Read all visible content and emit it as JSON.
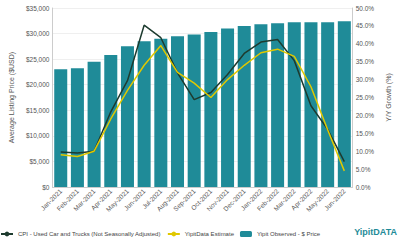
{
  "chart_data": {
    "type": "bar",
    "categories": [
      "Jan-2021",
      "Feb-2021",
      "Mar-2021",
      "Apr-2021",
      "May-2021",
      "Jun-2021",
      "Jul-2021",
      "Aug-2021",
      "Sep-2021",
      "Oct-2021",
      "Nov-2021",
      "Dec-2021",
      "Jan-2022",
      "Feb-2022",
      "Mar-2022",
      "Apr-2022",
      "May-2022",
      "Jun-2022"
    ],
    "series": [
      {
        "name": "CPI - Used Car and Trucks (Not Seasonally Adjusted)",
        "type": "line",
        "axis": "y2",
        "color": "#1d3b2f",
        "marker": "none",
        "values": [
          9.8,
          9.5,
          10.0,
          21.0,
          29.7,
          45.2,
          41.7,
          31.9,
          24.4,
          26.4,
          31.4,
          37.3,
          40.5,
          41.2,
          35.3,
          22.7,
          16.1,
          7.1
        ]
      },
      {
        "name": "YipitData Estimate",
        "type": "line",
        "axis": "y2",
        "color": "#e0c800",
        "marker": "none",
        "values": [
          9.0,
          8.5,
          10.0,
          19.0,
          27.0,
          34.0,
          39.5,
          32.0,
          29.0,
          25.0,
          30.0,
          34.0,
          37.5,
          38.5,
          36.5,
          28.0,
          16.0,
          4.5
        ]
      },
      {
        "name": "Yipit Observed - $ Price",
        "type": "bar",
        "color": "#1f8b98",
        "values": [
          23000,
          23200,
          24500,
          25800,
          27500,
          28500,
          29000,
          29500,
          29800,
          30300,
          31000,
          31500,
          31800,
          32000,
          32200,
          32200,
          32200,
          32400
        ]
      }
    ],
    "y_label": "Average Listing Price ($USD)",
    "y2_label": "Y/Y Growth (%)",
    "ylim": [
      0,
      35000
    ],
    "yticks": [
      {
        "value": 0,
        "label": "$0"
      },
      {
        "value": 5000,
        "label": "$5,000"
      },
      {
        "value": 10000,
        "label": "$10,000"
      },
      {
        "value": 15000,
        "label": "$15,000"
      },
      {
        "value": 20000,
        "label": "$20,000"
      },
      {
        "value": 25000,
        "label": "$25,000"
      },
      {
        "value": 30000,
        "label": "$30,000"
      },
      {
        "value": 35000,
        "label": "$35,000"
      }
    ],
    "y2lim": [
      0,
      50
    ],
    "y2ticks": [
      {
        "value": 0,
        "label": "0.0%"
      },
      {
        "value": 5,
        "label": "5.0%"
      },
      {
        "value": 10,
        "label": "10.0%"
      },
      {
        "value": 15,
        "label": "15.0%"
      },
      {
        "value": 20,
        "label": "20.0%"
      },
      {
        "value": 25,
        "label": "25.0%"
      },
      {
        "value": 30,
        "label": "30.0%"
      },
      {
        "value": 35,
        "label": "35.0%"
      },
      {
        "value": 40,
        "label": "40.0%"
      },
      {
        "value": 45,
        "label": "45.0%"
      },
      {
        "value": 50,
        "label": "50.0%"
      }
    ],
    "grid": true,
    "legend": "bottom",
    "annotations": [
      "YipitDATA"
    ]
  }
}
